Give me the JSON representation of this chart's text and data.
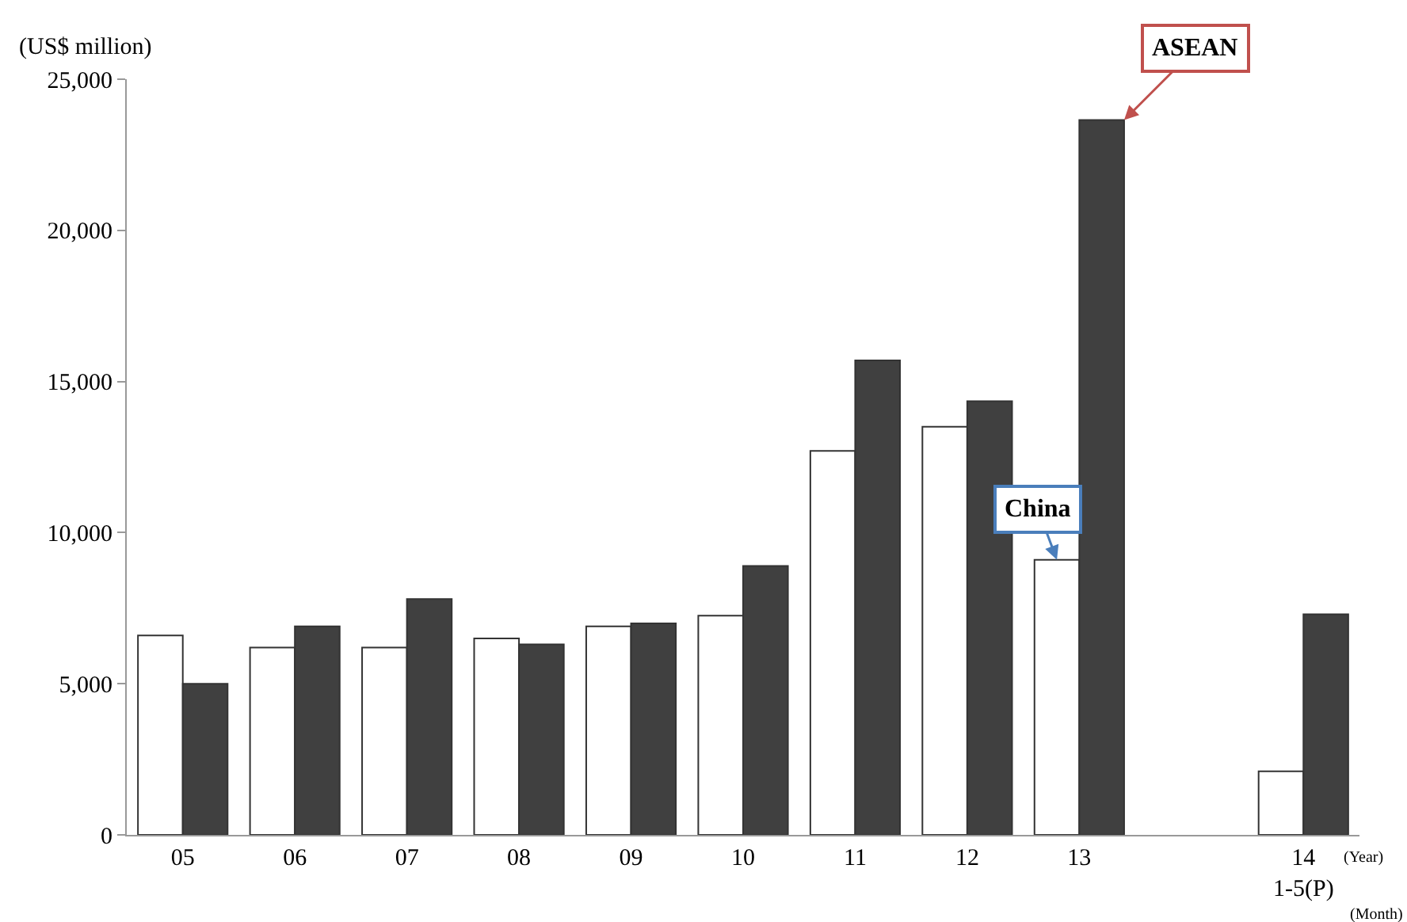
{
  "chart_data": {
    "type": "bar",
    "ylabel": "(US$ million)",
    "categories": [
      "05",
      "06",
      "07",
      "08",
      "09",
      "10",
      "11",
      "12",
      "13",
      null,
      "14\n1-5(P)"
    ],
    "series": [
      {
        "name": "China",
        "color": "#ffffff",
        "values": [
          6600,
          6200,
          6200,
          6500,
          6900,
          7250,
          12700,
          13500,
          9100,
          null,
          2100
        ]
      },
      {
        "name": "ASEAN",
        "color": "#404040",
        "values": [
          5000,
          6900,
          7800,
          6300,
          7000,
          8900,
          15700,
          14350,
          23650,
          null,
          7300
        ]
      }
    ],
    "ylim": [
      0,
      25000
    ],
    "yticks": [
      {
        "value": 0,
        "label": "0"
      },
      {
        "value": 5000,
        "label": "5,000"
      },
      {
        "value": 10000,
        "label": "10,000"
      },
      {
        "value": 15000,
        "label": "15,000"
      },
      {
        "value": 20000,
        "label": "20,000"
      },
      {
        "value": 25000,
        "label": "25,000"
      }
    ],
    "grid": false,
    "legend": false,
    "annotations": [
      "(Year)",
      "(Month)"
    ]
  }
}
